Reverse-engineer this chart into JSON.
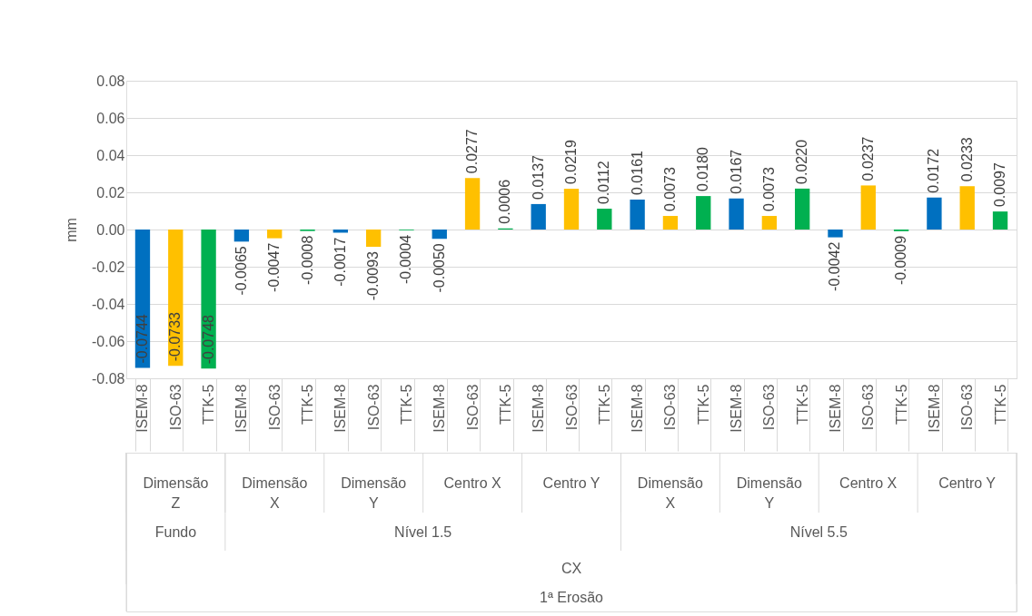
{
  "chart_data": {
    "type": "bar",
    "ylabel": "mm",
    "categories": [
      "ISEM-8",
      "ISO-63",
      "TTK-5",
      "ISEM-8",
      "ISO-63",
      "TTK-5",
      "ISEM-8",
      "ISO-63",
      "TTK-5",
      "ISEM-8",
      "ISO-63",
      "TTK-5",
      "ISEM-8",
      "ISO-63",
      "TTK-5",
      "ISEM-8",
      "ISO-63",
      "TTK-5",
      "ISEM-8",
      "ISO-63",
      "TTK-5",
      "ISEM-8",
      "ISO-63",
      "TTK-5",
      "ISEM-8",
      "ISO-63",
      "TTK-5"
    ],
    "values": [
      -0.0744,
      -0.0733,
      -0.0748,
      -0.0065,
      -0.0047,
      -0.0008,
      -0.0017,
      -0.0093,
      -0.0004,
      -0.005,
      0.0277,
      0.0006,
      0.0137,
      0.0219,
      0.0112,
      0.0161,
      0.0073,
      0.018,
      0.0167,
      0.0073,
      0.022,
      -0.0042,
      0.0237,
      -0.0009,
      0.0172,
      0.0233,
      0.0097
    ],
    "value_labels": [
      "-0.0744",
      "-0.0733",
      "-0.0748",
      "-0.0065",
      "-0.0047",
      "-0.0008",
      "-0.0017",
      "-0.0093",
      "-0.0004",
      "-0.0050",
      "0.0277",
      "0.0006",
      "0.0137",
      "0.0219",
      "0.0112",
      "0.0161",
      "0.0073",
      "0.0180",
      "0.0167",
      "0.0073",
      "0.0220",
      "-0.0042",
      "0.0237",
      "-0.0009",
      "0.0172",
      "0.0233",
      "0.0097"
    ],
    "colors": [
      "#0070c0",
      "#ffc000",
      "#00b050",
      "#0070c0",
      "#ffc000",
      "#00b050",
      "#0070c0",
      "#ffc000",
      "#00b050",
      "#0070c0",
      "#ffc000",
      "#00b050",
      "#0070c0",
      "#ffc000",
      "#00b050",
      "#0070c0",
      "#ffc000",
      "#00b050",
      "#0070c0",
      "#ffc000",
      "#00b050",
      "#0070c0",
      "#ffc000",
      "#00b050",
      "#0070c0",
      "#ffc000",
      "#00b050"
    ],
    "ylim": [
      -0.08,
      0.08
    ],
    "yticks": [
      -0.08,
      -0.06,
      -0.04,
      -0.02,
      {
        "value": 0,
        "label": "0.00"
      },
      0.02,
      0.04,
      0.06,
      0.08
    ],
    "grid": "y",
    "annotations": [
      "Dimensão Z",
      "Dimensão X",
      "Dimensão Y",
      "Centro X",
      "Centro Y",
      "Dimensão X",
      "Dimensão Y",
      "Centro X",
      "Centro Y",
      "Fundo",
      "Nível 1.5",
      "Nível 5.5",
      "CX",
      "1ª Erosão"
    ]
  }
}
